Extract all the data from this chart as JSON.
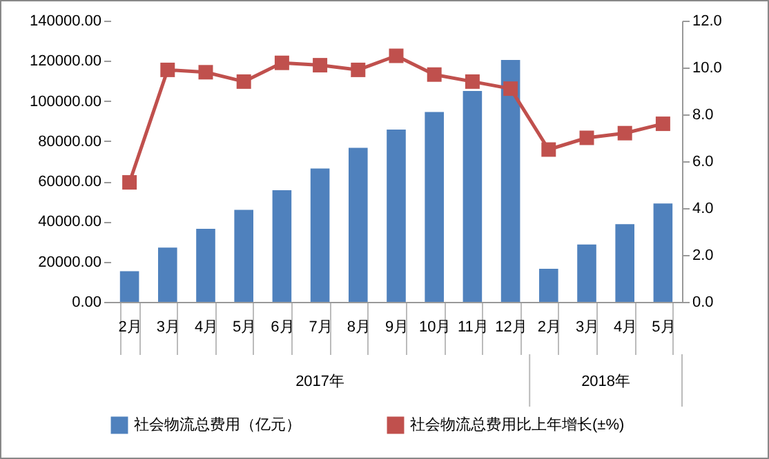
{
  "chart_data": {
    "type": "bar",
    "categories": [
      "2月",
      "3月",
      "4月",
      "5月",
      "6月",
      "7月",
      "8月",
      "9月",
      "10月",
      "11月",
      "12月",
      "2月",
      "3月",
      "4月",
      "5月"
    ],
    "series": [
      {
        "name": "社会物流总费用（亿元）",
        "color": "#4f81bd",
        "values": [
          15300,
          27000,
          36400,
          45800,
          55600,
          66400,
          76700,
          85800,
          94500,
          105000,
          120400,
          16500,
          28600,
          38700,
          49000
        ]
      },
      {
        "name": "社会物流总费用比上年增长(±%)",
        "type": "line",
        "axis": "y2",
        "color": "#c0504d",
        "values": [
          5.1,
          9.9,
          9.8,
          9.4,
          10.2,
          10.1,
          9.9,
          10.5,
          9.7,
          9.4,
          9.1,
          6.5,
          7.0,
          7.2,
          7.6
        ]
      }
    ],
    "annotations": [
      "2017年",
      "2018年"
    ],
    "ylim": [
      0,
      140000
    ],
    "yticks": [
      {
        "value": 0,
        "label": "0.00"
      },
      {
        "value": 20000,
        "label": "20000.00"
      },
      {
        "value": 40000,
        "label": "40000.00"
      },
      {
        "value": 60000,
        "label": "60000.00"
      },
      {
        "value": 80000,
        "label": "80000.00"
      },
      {
        "value": 100000,
        "label": "100000.00"
      },
      {
        "value": 120000,
        "label": "120000.00"
      },
      {
        "value": 140000,
        "label": "140000.00"
      }
    ],
    "y2lim": [
      0,
      12
    ],
    "y2ticks": [
      {
        "value": 0,
        "label": "0.0"
      },
      {
        "value": 2,
        "label": "2.0"
      },
      {
        "value": 4,
        "label": "4.0"
      },
      {
        "value": 6,
        "label": "6.0"
      },
      {
        "value": 8,
        "label": "8.0"
      },
      {
        "value": 10,
        "label": "10.0"
      },
      {
        "value": 12,
        "label": "12.0"
      }
    ],
    "grid": false,
    "legend": "bottom",
    "marker": "square",
    "line_style": "solid"
  }
}
